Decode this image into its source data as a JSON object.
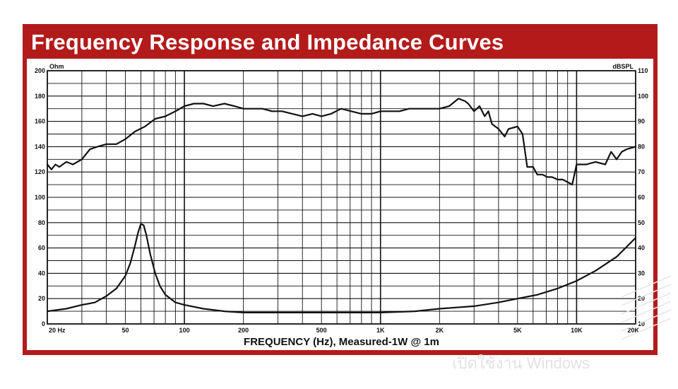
{
  "chart_data": {
    "type": "line",
    "title": "Frequency Response and Impedance Curves",
    "xlabel": "FREQUENCY (Hz), Measured-1W @ 1m",
    "x_scale": "log",
    "xlim": [
      20,
      20000
    ],
    "x_ticks": [
      {
        "value": 20,
        "label": "20 Hz"
      },
      {
        "value": 50,
        "label": "50"
      },
      {
        "value": 100,
        "label": "100"
      },
      {
        "value": 200,
        "label": "200"
      },
      {
        "value": 500,
        "label": "500"
      },
      {
        "value": 1000,
        "label": "1K"
      },
      {
        "value": 2000,
        "label": "2K"
      },
      {
        "value": 5000,
        "label": "5K"
      },
      {
        "value": 10000,
        "label": "10K"
      },
      {
        "value": 20000,
        "label": "20K"
      }
    ],
    "y_left": {
      "unit": "Ohm",
      "lim": [
        0,
        200
      ],
      "ticks": [
        0,
        20,
        40,
        60,
        80,
        100,
        120,
        140,
        160,
        180,
        200
      ]
    },
    "y_right": {
      "unit": "dBSPL",
      "lim": [
        10,
        110
      ],
      "ticks": [
        10,
        20,
        30,
        40,
        50,
        60,
        70,
        80,
        90,
        100,
        110
      ]
    },
    "grid": true,
    "series": [
      {
        "axis": "right",
        "color": "#111111",
        "x": [
          20,
          21,
          22,
          23,
          25,
          27,
          30,
          33,
          36,
          40,
          45,
          50,
          56,
          63,
          71,
          80,
          90,
          100,
          112,
          125,
          140,
          160,
          180,
          200,
          224,
          250,
          280,
          315,
          355,
          400,
          450,
          500,
          560,
          630,
          710,
          800,
          900,
          1000,
          1120,
          1250,
          1400,
          1600,
          1800,
          2000,
          2240,
          2500,
          2700,
          2800,
          3000,
          3200,
          3400,
          3550,
          3700,
          4000,
          4300,
          4500,
          5000,
          5300,
          5600,
          6000,
          6300,
          6700,
          7100,
          7500,
          8000,
          8500,
          9000,
          9500,
          10000,
          11200,
          12500,
          14000,
          15000,
          16000,
          17000,
          18000,
          20000
        ],
        "values": [
          73,
          71,
          73,
          72,
          74,
          73,
          75,
          79,
          80,
          81,
          81,
          83,
          86,
          88,
          91,
          92,
          94,
          96,
          97,
          97,
          96,
          97,
          96,
          95,
          95,
          95,
          94,
          94,
          93,
          92,
          93,
          92,
          93,
          95,
          94,
          93,
          93,
          94,
          94,
          94,
          95,
          95,
          95,
          95,
          96,
          99,
          98,
          97,
          94,
          96,
          92,
          94,
          89,
          87,
          84,
          87,
          88,
          85,
          72,
          72,
          69,
          69,
          68,
          68,
          67,
          67,
          66,
          65,
          73,
          73,
          74,
          73,
          78,
          75,
          78,
          79,
          80
        ]
      },
      {
        "axis": "left",
        "color": "#111111",
        "x": [
          20,
          25,
          30,
          35,
          40,
          45,
          50,
          53,
          56,
          58,
          60,
          62,
          64,
          67,
          71,
          75,
          80,
          90,
          100,
          125,
          160,
          200,
          300,
          500,
          800,
          1000,
          1500,
          2000,
          3000,
          4000,
          5000,
          6300,
          8000,
          10000,
          12500,
          16000,
          20000
        ],
        "values": [
          10,
          12,
          15,
          17,
          22,
          28,
          38,
          48,
          62,
          72,
          79,
          78,
          70,
          55,
          40,
          30,
          23,
          17,
          15,
          12,
          10,
          9,
          9,
          9,
          9,
          9,
          10,
          12,
          14,
          17,
          20,
          23,
          28,
          34,
          42,
          53,
          68
        ]
      }
    ]
  },
  "watermark": "เปิดใช้งาน Windows"
}
